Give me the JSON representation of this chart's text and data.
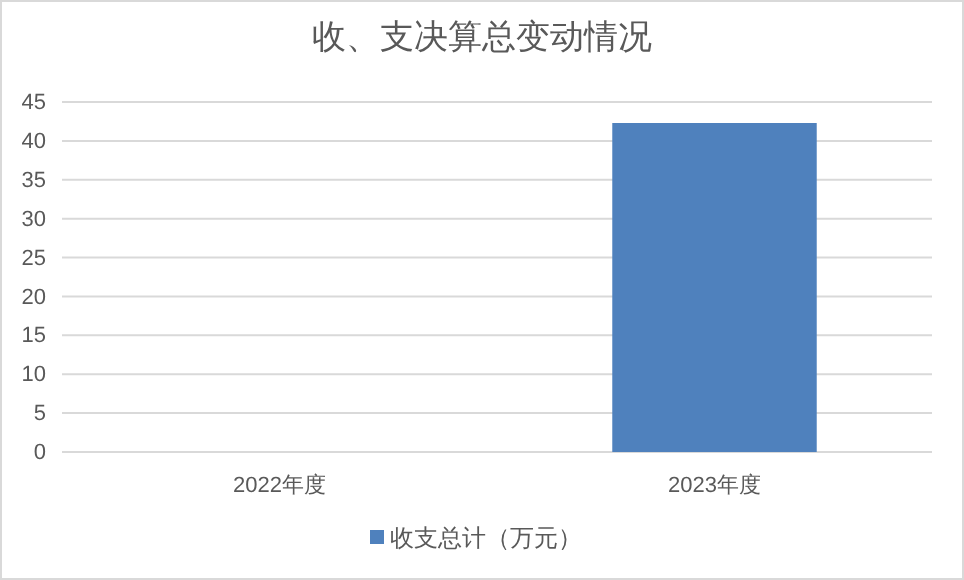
{
  "chart_data": {
    "type": "bar",
    "title": "收、支决算总变动情况",
    "categories": [
      "2022年度",
      "2023年度"
    ],
    "series": [
      {
        "name": "收支总计（万元）",
        "color": "#4f81bd",
        "values": [
          0,
          42.3
        ]
      }
    ],
    "ylim": [
      0,
      45
    ],
    "yticks": [
      0,
      5,
      10,
      15,
      20,
      25,
      30,
      35,
      40,
      45
    ],
    "grid": "y",
    "legend": "bottom"
  }
}
